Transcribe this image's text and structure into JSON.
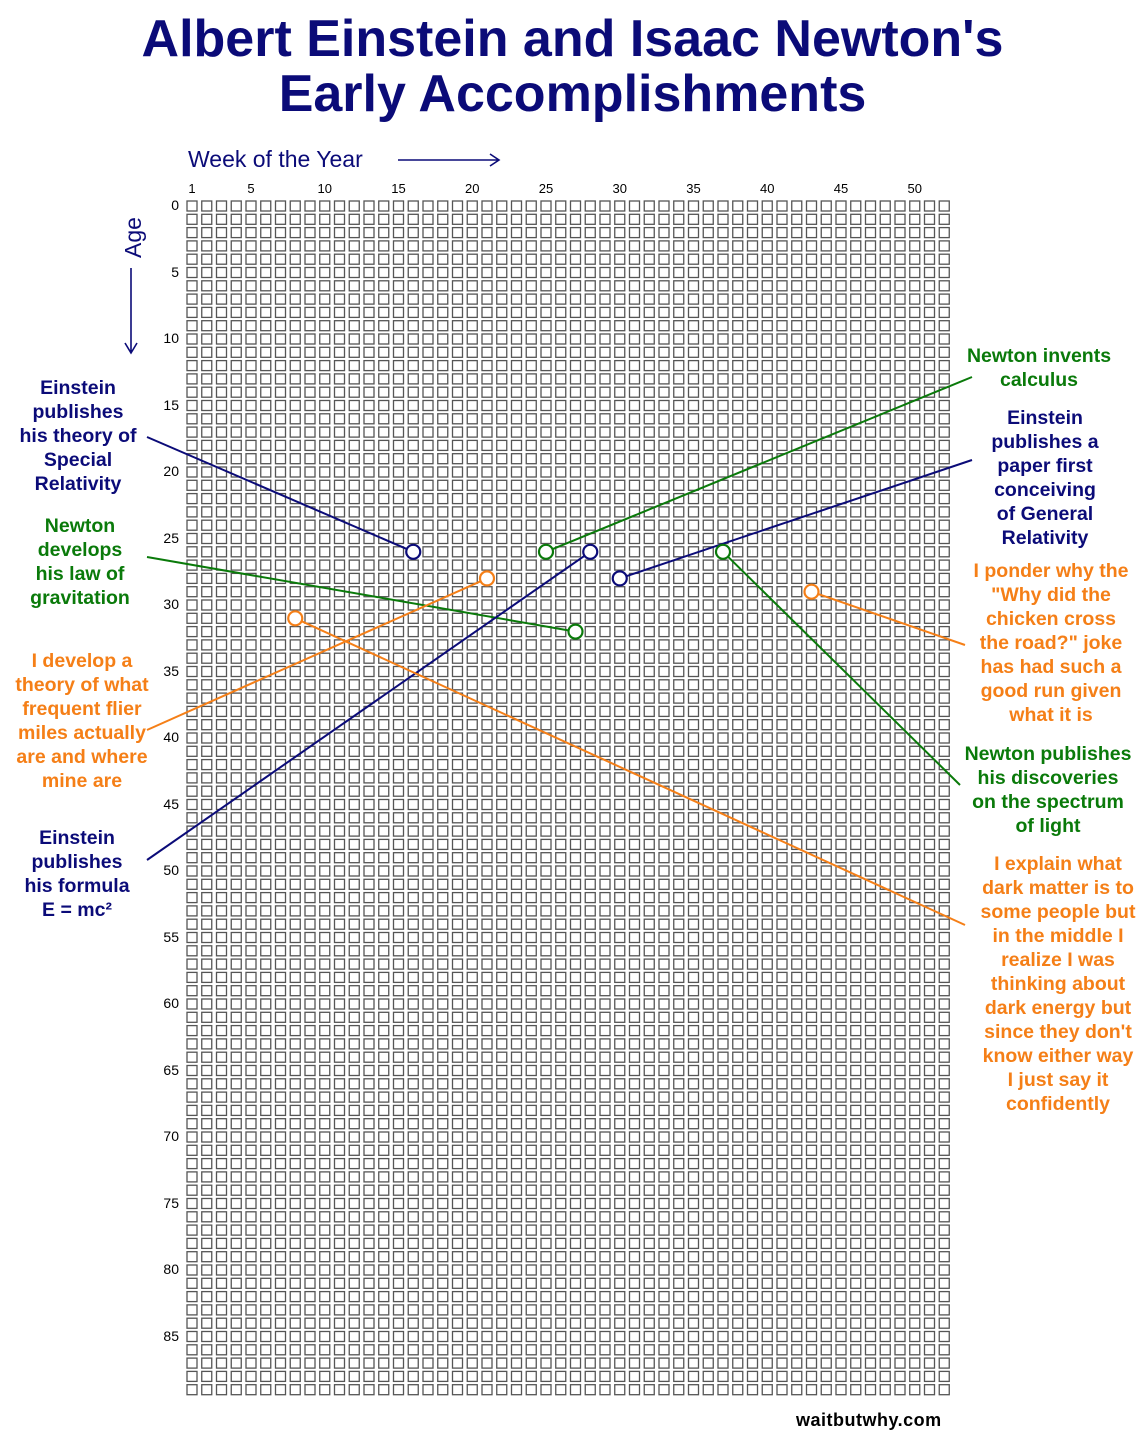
{
  "title": [
    "Albert Einstein and Isaac Newton's",
    "Early Accomplishments"
  ],
  "credit": "waitbutwhy.com",
  "colors": {
    "einstein": "#0b0b78",
    "newton": "#0a7a0a",
    "me": "#f57f17",
    "cell_border": "#555555"
  },
  "chart_data": {
    "type": "scatter",
    "subtype": "life-in-weeks grid",
    "xlabel": "Week of the Year",
    "ylabel": "Age",
    "x_range": [
      1,
      52
    ],
    "y_range": [
      0,
      89
    ],
    "x_ticks": [
      "1",
      "5",
      "10",
      "15",
      "20",
      "25",
      "30",
      "35",
      "40",
      "45",
      "50"
    ],
    "y_ticks": [
      "0",
      "5",
      "10",
      "15",
      "20",
      "25",
      "30",
      "35",
      "40",
      "45",
      "50",
      "55",
      "60",
      "65",
      "70",
      "75",
      "80",
      "85"
    ],
    "annotations": [
      {
        "who": "einstein",
        "week": 16,
        "age": 26,
        "lines": [
          "Einstein",
          "publishes",
          "his theory of",
          "Special",
          "Relativity"
        ]
      },
      {
        "who": "newton",
        "week": 27,
        "age": 32,
        "lines": [
          "Newton",
          "develops",
          "his law of",
          "gravitation"
        ]
      },
      {
        "who": "me",
        "week": 21,
        "age": 28,
        "lines": [
          "I develop a",
          "theory of what",
          "frequent flier",
          "miles actually",
          "are and where",
          "mine are"
        ]
      },
      {
        "who": "einstein",
        "week": 28,
        "age": 26,
        "lines": [
          "Einstein",
          "publishes",
          "his formula",
          "E = mc²"
        ]
      },
      {
        "who": "newton",
        "week": 25,
        "age": 26,
        "lines": [
          "Newton invents",
          "calculus"
        ]
      },
      {
        "who": "einstein",
        "week": 30,
        "age": 28,
        "lines": [
          "Einstein",
          "publishes a",
          "paper first",
          "conceiving",
          "of General",
          "Relativity"
        ]
      },
      {
        "who": "me",
        "week": 43,
        "age": 29,
        "lines": [
          "I ponder why the",
          "\"Why did the",
          "chicken cross",
          "the road?\" joke",
          "has had such a",
          "good run given",
          "what it is"
        ]
      },
      {
        "who": "newton",
        "week": 37,
        "age": 26,
        "lines": [
          "Newton publishes",
          "his discoveries",
          "on the spectrum",
          "of light"
        ]
      },
      {
        "who": "me",
        "week": 8,
        "age": 31,
        "lines": [
          "I explain what",
          "dark matter is to",
          "some people but",
          "in the middle I",
          "realize I was",
          "thinking about",
          "dark energy but",
          "since they don't",
          "know either way",
          "I just say it",
          "confidently"
        ]
      }
    ]
  }
}
